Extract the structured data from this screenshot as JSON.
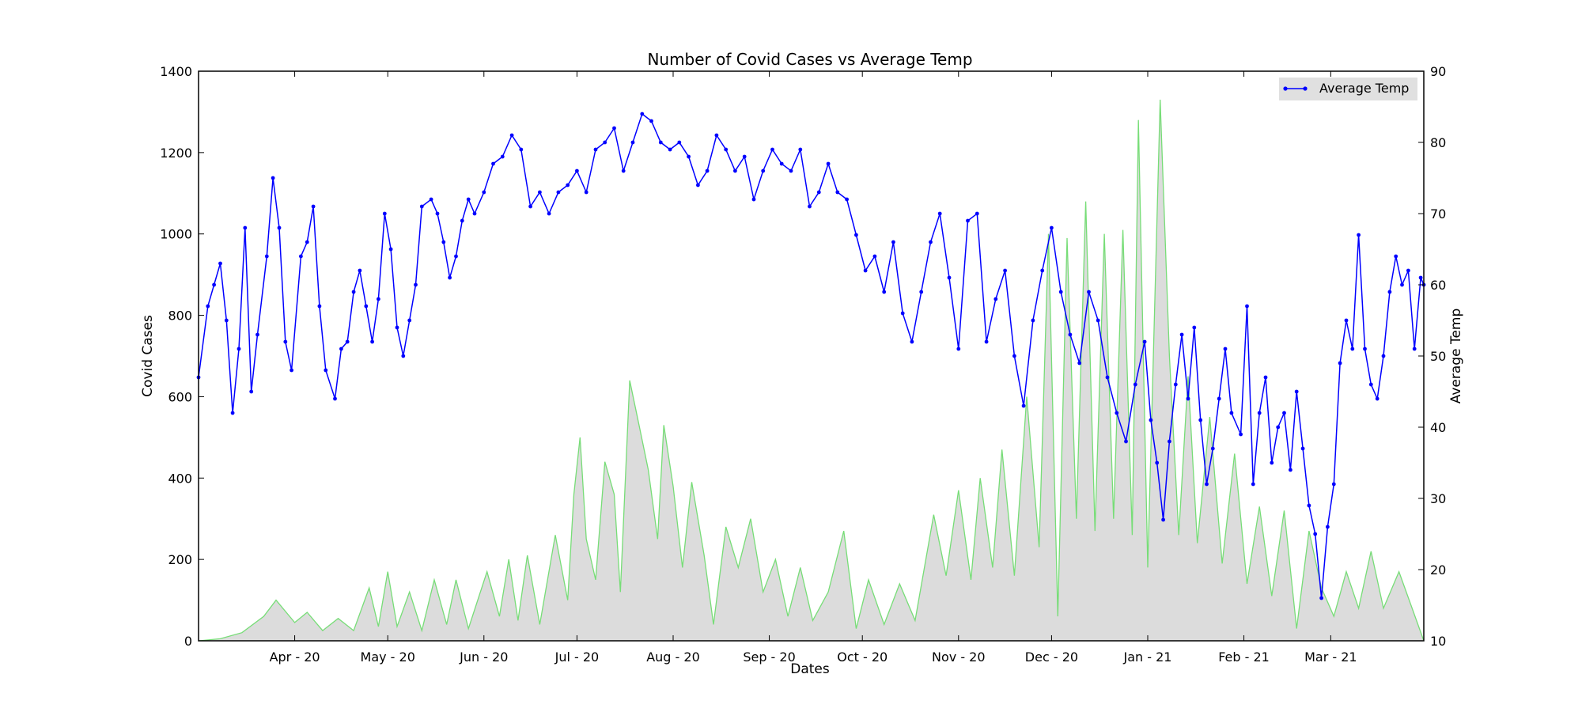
{
  "chart_data": {
    "type": "line",
    "title": "Number of Covid Cases vs Average Temp",
    "xlabel": "Dates",
    "ylabel_left": "Covid Cases",
    "ylabel_right": "Average Temp",
    "x_range": [
      "2020-03-01",
      "2021-03-31"
    ],
    "x_ticks": [
      {
        "date": "2020-04-01",
        "label": "Apr - 20"
      },
      {
        "date": "2020-05-01",
        "label": "May - 20"
      },
      {
        "date": "2020-06-01",
        "label": "Jun - 20"
      },
      {
        "date": "2020-07-01",
        "label": "Jul - 20"
      },
      {
        "date": "2020-08-01",
        "label": "Aug - 20"
      },
      {
        "date": "2020-09-01",
        "label": "Sep - 20"
      },
      {
        "date": "2020-10-01",
        "label": "Oct - 20"
      },
      {
        "date": "2020-11-01",
        "label": "Nov - 20"
      },
      {
        "date": "2020-12-01",
        "label": "Dec - 20"
      },
      {
        "date": "2021-01-01",
        "label": "Jan - 21"
      },
      {
        "date": "2021-02-01",
        "label": "Feb - 21"
      },
      {
        "date": "2021-03-01",
        "label": "Mar - 21"
      }
    ],
    "ylim_left": [
      0,
      1400
    ],
    "yticks_left": [
      0,
      200,
      400,
      600,
      800,
      1000,
      1200,
      1400
    ],
    "ylim_right": [
      10,
      90
    ],
    "yticks_right": [
      10,
      20,
      30,
      40,
      50,
      60,
      70,
      80,
      90
    ],
    "legend": {
      "placement": "top-right",
      "entries": [
        "Average Temp"
      ]
    },
    "colors": {
      "temp": "#0000ff",
      "cases_line": "#77dd77",
      "cases_fill": "#dcdcdc"
    },
    "grid": false,
    "series": [
      {
        "name": "Covid Cases",
        "axis": "left",
        "style": "area",
        "points": [
          [
            "2020-03-01",
            0
          ],
          [
            "2020-03-08",
            5
          ],
          [
            "2020-03-15",
            20
          ],
          [
            "2020-03-22",
            60
          ],
          [
            "2020-03-26",
            100
          ],
          [
            "2020-04-01",
            45
          ],
          [
            "2020-04-05",
            70
          ],
          [
            "2020-04-10",
            25
          ],
          [
            "2020-04-15",
            55
          ],
          [
            "2020-04-20",
            25
          ],
          [
            "2020-04-25",
            130
          ],
          [
            "2020-04-28",
            35
          ],
          [
            "2020-05-01",
            170
          ],
          [
            "2020-05-04",
            35
          ],
          [
            "2020-05-08",
            120
          ],
          [
            "2020-05-12",
            25
          ],
          [
            "2020-05-16",
            150
          ],
          [
            "2020-05-20",
            40
          ],
          [
            "2020-05-23",
            150
          ],
          [
            "2020-05-27",
            30
          ],
          [
            "2020-06-02",
            170
          ],
          [
            "2020-06-06",
            60
          ],
          [
            "2020-06-09",
            200
          ],
          [
            "2020-06-12",
            50
          ],
          [
            "2020-06-15",
            210
          ],
          [
            "2020-06-19",
            40
          ],
          [
            "2020-06-24",
            260
          ],
          [
            "2020-06-28",
            100
          ],
          [
            "2020-06-30",
            360
          ],
          [
            "2020-07-02",
            500
          ],
          [
            "2020-07-04",
            250
          ],
          [
            "2020-07-07",
            150
          ],
          [
            "2020-07-10",
            440
          ],
          [
            "2020-07-13",
            360
          ],
          [
            "2020-07-15",
            120
          ],
          [
            "2020-07-18",
            640
          ],
          [
            "2020-07-21",
            530
          ],
          [
            "2020-07-24",
            420
          ],
          [
            "2020-07-27",
            250
          ],
          [
            "2020-07-29",
            530
          ],
          [
            "2020-08-01",
            380
          ],
          [
            "2020-08-04",
            180
          ],
          [
            "2020-08-07",
            390
          ],
          [
            "2020-08-11",
            210
          ],
          [
            "2020-08-14",
            40
          ],
          [
            "2020-08-18",
            280
          ],
          [
            "2020-08-22",
            180
          ],
          [
            "2020-08-26",
            300
          ],
          [
            "2020-08-30",
            120
          ],
          [
            "2020-09-03",
            200
          ],
          [
            "2020-09-07",
            60
          ],
          [
            "2020-09-11",
            180
          ],
          [
            "2020-09-15",
            50
          ],
          [
            "2020-09-20",
            120
          ],
          [
            "2020-09-25",
            270
          ],
          [
            "2020-09-29",
            30
          ],
          [
            "2020-10-03",
            150
          ],
          [
            "2020-10-08",
            40
          ],
          [
            "2020-10-13",
            140
          ],
          [
            "2020-10-18",
            50
          ],
          [
            "2020-10-24",
            310
          ],
          [
            "2020-10-28",
            160
          ],
          [
            "2020-11-01",
            370
          ],
          [
            "2020-11-05",
            150
          ],
          [
            "2020-11-08",
            400
          ],
          [
            "2020-11-12",
            180
          ],
          [
            "2020-11-15",
            470
          ],
          [
            "2020-11-19",
            160
          ],
          [
            "2020-11-23",
            600
          ],
          [
            "2020-11-27",
            230
          ],
          [
            "2020-11-30",
            1000
          ],
          [
            "2020-12-03",
            60
          ],
          [
            "2020-12-06",
            990
          ],
          [
            "2020-12-09",
            300
          ],
          [
            "2020-12-12",
            1080
          ],
          [
            "2020-12-15",
            270
          ],
          [
            "2020-12-18",
            1000
          ],
          [
            "2020-12-21",
            300
          ],
          [
            "2020-12-24",
            1010
          ],
          [
            "2020-12-27",
            260
          ],
          [
            "2020-12-29",
            1280
          ],
          [
            "2021-01-01",
            180
          ],
          [
            "2021-01-05",
            1330
          ],
          [
            "2021-01-08",
            700
          ],
          [
            "2021-01-11",
            260
          ],
          [
            "2021-01-14",
            650
          ],
          [
            "2021-01-17",
            240
          ],
          [
            "2021-01-21",
            550
          ],
          [
            "2021-01-25",
            190
          ],
          [
            "2021-01-29",
            460
          ],
          [
            "2021-02-02",
            140
          ],
          [
            "2021-02-06",
            330
          ],
          [
            "2021-02-10",
            110
          ],
          [
            "2021-02-14",
            320
          ],
          [
            "2021-02-18",
            30
          ],
          [
            "2021-02-22",
            270
          ],
          [
            "2021-02-26",
            130
          ],
          [
            "2021-03-02",
            60
          ],
          [
            "2021-03-06",
            170
          ],
          [
            "2021-03-10",
            80
          ],
          [
            "2021-03-14",
            220
          ],
          [
            "2021-03-18",
            80
          ],
          [
            "2021-03-23",
            170
          ],
          [
            "2021-03-31",
            0
          ]
        ]
      },
      {
        "name": "Average Temp",
        "axis": "right",
        "style": "line-markers",
        "points": [
          [
            "2020-03-01",
            47
          ],
          [
            "2020-03-04",
            57
          ],
          [
            "2020-03-06",
            60
          ],
          [
            "2020-03-08",
            63
          ],
          [
            "2020-03-10",
            55
          ],
          [
            "2020-03-12",
            42
          ],
          [
            "2020-03-14",
            51
          ],
          [
            "2020-03-16",
            68
          ],
          [
            "2020-03-18",
            45
          ],
          [
            "2020-03-20",
            53
          ],
          [
            "2020-03-23",
            64
          ],
          [
            "2020-03-25",
            75
          ],
          [
            "2020-03-27",
            68
          ],
          [
            "2020-03-29",
            52
          ],
          [
            "2020-03-31",
            48
          ],
          [
            "2020-04-03",
            64
          ],
          [
            "2020-04-05",
            66
          ],
          [
            "2020-04-07",
            71
          ],
          [
            "2020-04-09",
            57
          ],
          [
            "2020-04-11",
            48
          ],
          [
            "2020-04-14",
            44
          ],
          [
            "2020-04-16",
            51
          ],
          [
            "2020-04-18",
            52
          ],
          [
            "2020-04-20",
            59
          ],
          [
            "2020-04-22",
            62
          ],
          [
            "2020-04-24",
            57
          ],
          [
            "2020-04-26",
            52
          ],
          [
            "2020-04-28",
            58
          ],
          [
            "2020-04-30",
            70
          ],
          [
            "2020-05-02",
            65
          ],
          [
            "2020-05-04",
            54
          ],
          [
            "2020-05-06",
            50
          ],
          [
            "2020-05-08",
            55
          ],
          [
            "2020-05-10",
            60
          ],
          [
            "2020-05-12",
            71
          ],
          [
            "2020-05-15",
            72
          ],
          [
            "2020-05-17",
            70
          ],
          [
            "2020-05-19",
            66
          ],
          [
            "2020-05-21",
            61
          ],
          [
            "2020-05-23",
            64
          ],
          [
            "2020-05-25",
            69
          ],
          [
            "2020-05-27",
            72
          ],
          [
            "2020-05-29",
            70
          ],
          [
            "2020-06-01",
            73
          ],
          [
            "2020-06-04",
            77
          ],
          [
            "2020-06-07",
            78
          ],
          [
            "2020-06-10",
            81
          ],
          [
            "2020-06-13",
            79
          ],
          [
            "2020-06-16",
            71
          ],
          [
            "2020-06-19",
            73
          ],
          [
            "2020-06-22",
            70
          ],
          [
            "2020-06-25",
            73
          ],
          [
            "2020-06-28",
            74
          ],
          [
            "2020-07-01",
            76
          ],
          [
            "2020-07-04",
            73
          ],
          [
            "2020-07-07",
            79
          ],
          [
            "2020-07-10",
            80
          ],
          [
            "2020-07-13",
            82
          ],
          [
            "2020-07-16",
            76
          ],
          [
            "2020-07-19",
            80
          ],
          [
            "2020-07-22",
            84
          ],
          [
            "2020-07-25",
            83
          ],
          [
            "2020-07-28",
            80
          ],
          [
            "2020-07-31",
            79
          ],
          [
            "2020-08-03",
            80
          ],
          [
            "2020-08-06",
            78
          ],
          [
            "2020-08-09",
            74
          ],
          [
            "2020-08-12",
            76
          ],
          [
            "2020-08-15",
            81
          ],
          [
            "2020-08-18",
            79
          ],
          [
            "2020-08-21",
            76
          ],
          [
            "2020-08-24",
            78
          ],
          [
            "2020-08-27",
            72
          ],
          [
            "2020-08-30",
            76
          ],
          [
            "2020-09-02",
            79
          ],
          [
            "2020-09-05",
            77
          ],
          [
            "2020-09-08",
            76
          ],
          [
            "2020-09-11",
            79
          ],
          [
            "2020-09-14",
            71
          ],
          [
            "2020-09-17",
            73
          ],
          [
            "2020-09-20",
            77
          ],
          [
            "2020-09-23",
            73
          ],
          [
            "2020-09-26",
            72
          ],
          [
            "2020-09-29",
            67
          ],
          [
            "2020-10-02",
            62
          ],
          [
            "2020-10-05",
            64
          ],
          [
            "2020-10-08",
            59
          ],
          [
            "2020-10-11",
            66
          ],
          [
            "2020-10-14",
            56
          ],
          [
            "2020-10-17",
            52
          ],
          [
            "2020-10-20",
            59
          ],
          [
            "2020-10-23",
            66
          ],
          [
            "2020-10-26",
            70
          ],
          [
            "2020-10-29",
            61
          ],
          [
            "2020-11-01",
            51
          ],
          [
            "2020-11-04",
            69
          ],
          [
            "2020-11-07",
            70
          ],
          [
            "2020-11-10",
            52
          ],
          [
            "2020-11-13",
            58
          ],
          [
            "2020-11-16",
            62
          ],
          [
            "2020-11-19",
            50
          ],
          [
            "2020-11-22",
            43
          ],
          [
            "2020-11-25",
            55
          ],
          [
            "2020-11-28",
            62
          ],
          [
            "2020-12-01",
            68
          ],
          [
            "2020-12-04",
            59
          ],
          [
            "2020-12-07",
            53
          ],
          [
            "2020-12-10",
            49
          ],
          [
            "2020-12-13",
            59
          ],
          [
            "2020-12-16",
            55
          ],
          [
            "2020-12-19",
            47
          ],
          [
            "2020-12-22",
            42
          ],
          [
            "2020-12-25",
            38
          ],
          [
            "2020-12-28",
            46
          ],
          [
            "2020-12-31",
            52
          ],
          [
            "2021-01-02",
            41
          ],
          [
            "2021-01-04",
            35
          ],
          [
            "2021-01-06",
            27
          ],
          [
            "2021-01-08",
            38
          ],
          [
            "2021-01-10",
            46
          ],
          [
            "2021-01-12",
            53
          ],
          [
            "2021-01-14",
            44
          ],
          [
            "2021-01-16",
            54
          ],
          [
            "2021-01-18",
            41
          ],
          [
            "2021-01-20",
            32
          ],
          [
            "2021-01-22",
            37
          ],
          [
            "2021-01-24",
            44
          ],
          [
            "2021-01-26",
            51
          ],
          [
            "2021-01-28",
            42
          ],
          [
            "2021-01-31",
            39
          ],
          [
            "2021-02-02",
            57
          ],
          [
            "2021-02-04",
            32
          ],
          [
            "2021-02-06",
            42
          ],
          [
            "2021-02-08",
            47
          ],
          [
            "2021-02-10",
            35
          ],
          [
            "2021-02-12",
            40
          ],
          [
            "2021-02-14",
            42
          ],
          [
            "2021-02-16",
            34
          ],
          [
            "2021-02-18",
            45
          ],
          [
            "2021-02-20",
            37
          ],
          [
            "2021-02-22",
            29
          ],
          [
            "2021-02-24",
            25
          ],
          [
            "2021-02-26",
            16
          ],
          [
            "2021-02-28",
            26
          ],
          [
            "2021-03-02",
            32
          ],
          [
            "2021-03-04",
            49
          ],
          [
            "2021-03-06",
            55
          ],
          [
            "2021-03-08",
            51
          ],
          [
            "2021-03-10",
            67
          ],
          [
            "2021-03-12",
            51
          ],
          [
            "2021-03-14",
            46
          ],
          [
            "2021-03-16",
            44
          ],
          [
            "2021-03-18",
            50
          ],
          [
            "2021-03-20",
            59
          ],
          [
            "2021-03-22",
            64
          ],
          [
            "2021-03-24",
            60
          ],
          [
            "2021-03-26",
            62
          ],
          [
            "2021-03-28",
            51
          ],
          [
            "2021-03-30",
            61
          ],
          [
            "2021-03-31",
            60
          ]
        ]
      }
    ]
  }
}
